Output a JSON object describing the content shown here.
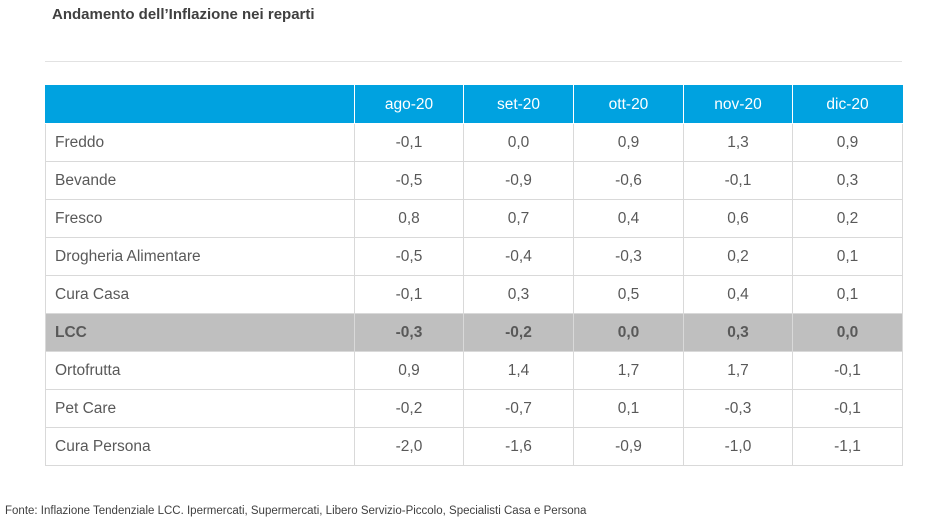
{
  "title": "Andamento dell’Inflazione nei reparti",
  "table": {
    "columns": [
      "",
      "ago-20",
      "set-20",
      "ott-20",
      "nov-20",
      "dic-20"
    ],
    "rows": [
      {
        "label": "Freddo",
        "values": [
          "-0,1",
          "0,0",
          "0,9",
          "1,3",
          "0,9"
        ],
        "highlight": false
      },
      {
        "label": "Bevande",
        "values": [
          "-0,5",
          "-0,9",
          "-0,6",
          "-0,1",
          "0,3"
        ],
        "highlight": false
      },
      {
        "label": "Fresco",
        "values": [
          "0,8",
          "0,7",
          "0,4",
          "0,6",
          "0,2"
        ],
        "highlight": false
      },
      {
        "label": "Drogheria Alimentare",
        "values": [
          "-0,5",
          "-0,4",
          "-0,3",
          "0,2",
          "0,1"
        ],
        "highlight": false
      },
      {
        "label": "Cura Casa",
        "values": [
          "-0,1",
          "0,3",
          "0,5",
          "0,4",
          "0,1"
        ],
        "highlight": false
      },
      {
        "label": "LCC",
        "values": [
          "-0,3",
          "-0,2",
          "0,0",
          "0,3",
          "0,0"
        ],
        "highlight": true
      },
      {
        "label": "Ortofrutta",
        "values": [
          "0,9",
          "1,4",
          "1,7",
          "1,7",
          "-0,1"
        ],
        "highlight": false
      },
      {
        "label": "Pet Care",
        "values": [
          "-0,2",
          "-0,7",
          "0,1",
          "-0,3",
          "-0,1"
        ],
        "highlight": false
      },
      {
        "label": "Cura Persona",
        "values": [
          "-2,0",
          "-1,6",
          "-0,9",
          "-1,0",
          "-1,1"
        ],
        "highlight": false
      }
    ]
  },
  "source": "Fonte: Inflazione Tendenziale LCC. Ipermercati, Supermercati, Libero Servizio-Piccolo, Specialisti Casa e Persona",
  "colors": {
    "header": "#00a2e0",
    "highlight_row": "#bfbfbf"
  }
}
